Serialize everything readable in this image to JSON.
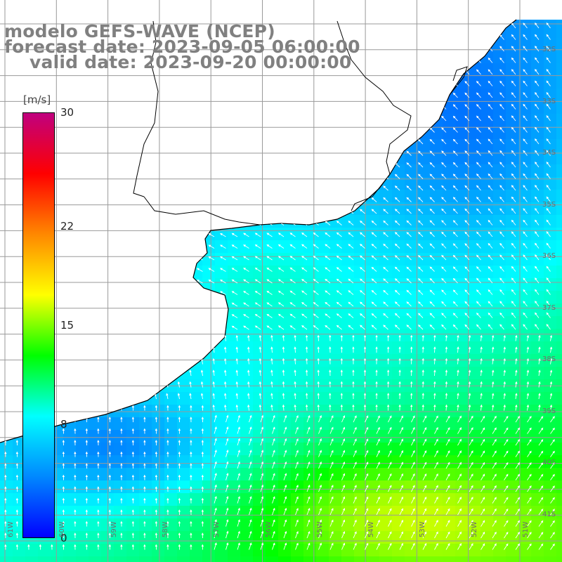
{
  "title": {
    "line1": "modelo GEFS-WAVE (NCEP)",
    "line2": "forecast date: 2023-09-05 06:00:00",
    "line3": "valid date: 2023-09-20 00:00:00"
  },
  "colorbar": {
    "unit": "[m/s]",
    "min": 0,
    "max": 30,
    "ticks": [
      "30",
      "22",
      "15",
      "8",
      "0"
    ],
    "tick_values": [
      30,
      22,
      15,
      8,
      0
    ],
    "colors": [
      "#0000ff",
      "#0088ff",
      "#00ffff",
      "#00ff00",
      "#ffff00",
      "#ff8800",
      "#ff0000",
      "#c0007f"
    ]
  },
  "map": {
    "land_color": "#ffffff",
    "coastline_color": "#000000",
    "grid_color": "#9a9a9a",
    "lat_labels": [
      "32S",
      "33S",
      "34S",
      "35S",
      "36S",
      "37S",
      "38S",
      "39S",
      "40S",
      "41S"
    ],
    "lon_labels": [
      "61W",
      "60W",
      "59W",
      "58W",
      "57W",
      "56W",
      "55W",
      "54W",
      "53W",
      "52W",
      "51W"
    ]
  }
}
